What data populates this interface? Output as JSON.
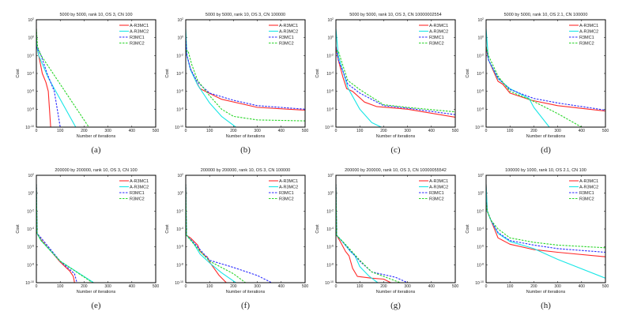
{
  "legend": {
    "entries": [
      "A-R3MC1",
      "A-R3MC2",
      "R3MC1",
      "R3MC2"
    ],
    "position": "top-right"
  },
  "colors": {
    "A-R3MC1": "#ff2a2a",
    "A-R3MC2": "#19e6e6",
    "R3MC1": "#2a2aff",
    "R3MC2": "#2ad62a"
  },
  "line_styles": {
    "A-R3MC1": "solid",
    "A-R3MC2": "solid",
    "R3MC1": "dashed",
    "R3MC2": "dashed"
  },
  "chart_data": [
    {
      "type": "line",
      "caption": "(a)",
      "title": "5000 by 5000, rank 10, OS 3, CN 100",
      "xlabel": "Number of iterations",
      "ylabel": "Cost",
      "xlim": [
        0,
        500
      ],
      "ylim": [
        1e-10,
        100
      ],
      "yscale": "log",
      "xticks": [
        0,
        100,
        200,
        300,
        400,
        500
      ],
      "yticks": [
        100,
        1,
        0.01,
        0.0001,
        1e-06,
        1e-08,
        1e-10
      ],
      "series": [
        {
          "name": "A-R3MC1",
          "x": [
            0,
            2,
            10,
            25,
            40,
            50,
            60
          ],
          "y": [
            10,
            0.1,
            0.01,
            0.0001,
            1e-05,
            1e-06,
            1e-10
          ]
        },
        {
          "name": "A-R3MC2",
          "x": [
            0,
            2,
            10,
            50,
            165
          ],
          "y": [
            10,
            0.1,
            0.01,
            3.2e-05,
            1e-10
          ]
        },
        {
          "name": "R3MC1",
          "x": [
            0,
            20,
            45,
            75,
            100
          ],
          "y": [
            0.1,
            0.01,
            0.0001,
            1e-06,
            1e-10
          ]
        },
        {
          "name": "R3MC2",
          "x": [
            0,
            5,
            20,
            220
          ],
          "y": [
            10,
            0.1,
            0.01,
            1e-10
          ]
        }
      ]
    },
    {
      "type": "line",
      "caption": "(b)",
      "title": "5000 by 5000, rank 10, OS 3, CN 100000",
      "xlabel": "Number of iterations",
      "ylabel": "Cost",
      "xlim": [
        0,
        500
      ],
      "ylim": [
        1e-10,
        100
      ],
      "yscale": "log",
      "xticks": [
        0,
        100,
        200,
        300,
        400,
        500
      ],
      "yticks": [
        100,
        1,
        0.01,
        0.0001,
        1e-06,
        1e-08,
        1e-10
      ],
      "series": [
        {
          "name": "A-R3MC1",
          "x": [
            0,
            5,
            20,
            45,
            60,
            150,
            300,
            500
          ],
          "y": [
            1,
            0.01,
            0.00032,
            1e-05,
            2e-06,
            1.3e-07,
            1.6e-08,
            7.9e-09
          ]
        },
        {
          "name": "A-R3MC2",
          "x": [
            0,
            5,
            20,
            50,
            100,
            150,
            210
          ],
          "y": [
            10,
            0.01,
            0.00025,
            5e-06,
            5e-08,
            1.6e-09,
            1e-10
          ]
        },
        {
          "name": "R3MC1",
          "x": [
            0,
            5,
            20,
            50,
            100,
            200,
            300,
            500
          ],
          "y": [
            1,
            0.01,
            0.00032,
            1e-05,
            6.3e-07,
            1e-07,
            2.5e-08,
            1e-08
          ]
        },
        {
          "name": "R3MC2",
          "x": [
            0,
            10,
            25,
            50,
            100,
            150,
            200,
            300,
            500
          ],
          "y": [
            0.032,
            0.032,
            0.001,
            1.6e-05,
            3.2e-07,
            1e-08,
            1.6e-09,
            6.3e-10,
            5e-10
          ]
        }
      ]
    },
    {
      "type": "line",
      "caption": "(c)",
      "title": "5000 by 5000, rank 10, OS 3, CN 10000002554",
      "xlabel": "Number of iterations",
      "ylabel": "Cost",
      "xlim": [
        0,
        500
      ],
      "ylim": [
        1e-10,
        100
      ],
      "yscale": "log",
      "xticks": [
        0,
        100,
        200,
        300,
        400,
        500
      ],
      "yticks": [
        100,
        1,
        0.01,
        0.0001,
        1e-06,
        1e-08,
        1e-10
      ],
      "series": [
        {
          "name": "A-R3MC1",
          "x": [
            0,
            10,
            30,
            45,
            70,
            120,
            170,
            300,
            500
          ],
          "y": [
            0.1,
            0.0032,
            3.2e-05,
            2e-06,
            1e-06,
            6.3e-08,
            2e-08,
            1e-08,
            1.3e-09
          ]
        },
        {
          "name": "A-R3MC2",
          "x": [
            0,
            10,
            30,
            50,
            100,
            150,
            190
          ],
          "y": [
            10,
            0.01,
            0.00016,
            2.5e-06,
            1e-08,
            3.2e-10,
            1e-10
          ]
        },
        {
          "name": "R3MC1",
          "x": [
            0,
            10,
            30,
            50,
            100,
            200,
            300,
            500
          ],
          "y": [
            0.1,
            0.0032,
            0.00016,
            6.3e-06,
            6.3e-07,
            2.5e-08,
            1.3e-08,
            2.5e-09
          ]
        },
        {
          "name": "R3MC2",
          "x": [
            0,
            10,
            30,
            50,
            100,
            200,
            300,
            500
          ],
          "y": [
            0.032,
            0.032,
            0.00063,
            1.6e-05,
            1.6e-06,
            3.2e-08,
            1.6e-08,
            5e-09
          ]
        }
      ]
    },
    {
      "type": "line",
      "caption": "(d)",
      "title": "5000 by 5000, rank 10, OS 2.1, CN 100000",
      "xlabel": "Number of iterations",
      "ylabel": "Cost",
      "xlim": [
        0,
        500
      ],
      "ylim": [
        1e-10,
        100
      ],
      "yscale": "log",
      "xticks": [
        0,
        100,
        200,
        300,
        400,
        500
      ],
      "yticks": [
        100,
        1,
        0.01,
        0.0001,
        1e-06,
        1e-08,
        1e-10
      ],
      "series": [
        {
          "name": "A-R3MC1",
          "x": [
            0,
            10,
            50,
            70,
            100,
            190,
            300,
            500
          ],
          "y": [
            0.1,
            0.0032,
            1.3e-05,
            6.3e-06,
            6.3e-07,
            1e-07,
            2.5e-08,
            6.3e-09
          ]
        },
        {
          "name": "A-R3MC2",
          "x": [
            0,
            10,
            50,
            100,
            180,
            200,
            265
          ],
          "y": [
            10,
            0.0032,
            2.5e-05,
            2e-06,
            1.6e-07,
            1.6e-08,
            1e-10
          ]
        },
        {
          "name": "R3MC1",
          "x": [
            0,
            10,
            50,
            100,
            200,
            300,
            500
          ],
          "y": [
            0.1,
            0.0032,
            3.2e-05,
            1.6e-06,
            1.6e-07,
            5e-08,
            7.9e-09
          ]
        },
        {
          "name": "R3MC2",
          "x": [
            0,
            10,
            50,
            100,
            190,
            300,
            400
          ],
          "y": [
            0.1,
            0.01,
            5e-05,
            1e-06,
            1e-07,
            3.2e-09,
            1e-10
          ]
        }
      ]
    },
    {
      "type": "line",
      "caption": "(e)",
      "title": "200000 by 200000, rank 10, OS 3, CN 100",
      "xlabel": "Number of iterations",
      "ylabel": "Cost",
      "xlim": [
        0,
        500
      ],
      "ylim": [
        1e-10,
        100
      ],
      "yscale": "log",
      "xticks": [
        0,
        100,
        200,
        300,
        400,
        500
      ],
      "yticks": [
        100,
        1,
        0.01,
        0.0001,
        1e-06,
        1e-08,
        1e-10
      ],
      "series": [
        {
          "name": "A-R3MC1",
          "x": [
            0,
            3,
            20,
            100,
            140,
            155,
            160
          ],
          "y": [
            10,
            3.2e-05,
            6.3e-06,
            2e-08,
            2e-09,
            5e-10,
            1e-10
          ]
        },
        {
          "name": "A-R3MC2",
          "x": [
            0,
            3,
            20,
            100,
            240
          ],
          "y": [
            10,
            3.2e-05,
            5e-06,
            2.5e-08,
            1e-10
          ]
        },
        {
          "name": "R3MC1",
          "x": [
            0,
            3,
            20,
            100,
            160,
            170
          ],
          "y": [
            10,
            3.2e-05,
            1e-05,
            2.5e-08,
            1e-09,
            1e-10
          ]
        },
        {
          "name": "R3MC2",
          "x": [
            0,
            3,
            20,
            100,
            235
          ],
          "y": [
            10,
            3.2e-05,
            5e-06,
            2.5e-08,
            1e-10
          ]
        }
      ]
    },
    {
      "type": "line",
      "caption": "(f)",
      "title": "200000 by 200000, rank 10, OS 3, CN 100000",
      "xlabel": "Number of iterations",
      "ylabel": "Cost",
      "xlim": [
        0,
        500
      ],
      "ylim": [
        1e-10,
        100
      ],
      "yscale": "log",
      "xticks": [
        0,
        100,
        200,
        300,
        400,
        500
      ],
      "yticks": [
        100,
        1,
        0.01,
        0.0001,
        1e-06,
        1e-08,
        1e-10
      ],
      "series": [
        {
          "name": "A-R3MC1",
          "x": [
            0,
            3,
            20,
            50,
            60,
            80,
            90,
            100,
            140,
            170
          ],
          "y": [
            10,
            2e-05,
            1e-05,
            1.6e-06,
            3.2e-07,
            1e-07,
            7.9e-08,
            2e-08,
            6.3e-10,
            1e-10
          ]
        },
        {
          "name": "A-R3MC2",
          "x": [
            0,
            3,
            30,
            60,
            100,
            150,
            210
          ],
          "y": [
            10,
            2e-05,
            3.2e-06,
            1.6e-07,
            1.6e-08,
            1.3e-09,
            1e-10
          ]
        },
        {
          "name": "R3MC1",
          "x": [
            0,
            3,
            50,
            100,
            200,
            300,
            360
          ],
          "y": [
            10,
            2e-05,
            1e-06,
            3.2e-08,
            5e-09,
            6.3e-10,
            1e-10
          ]
        },
        {
          "name": "R3MC2",
          "x": [
            0,
            3,
            50,
            100,
            200,
            250
          ],
          "y": [
            10,
            2e-05,
            6.3e-07,
            2.5e-08,
            1e-09,
            1e-10
          ]
        }
      ]
    },
    {
      "type": "line",
      "caption": "(g)",
      "title": "200000 by 200000, rank 10, OS 3, CN 10000055542",
      "xlabel": "Number of iterations",
      "ylabel": "Cost",
      "xlim": [
        0,
        500
      ],
      "ylim": [
        1e-10,
        100
      ],
      "yscale": "log",
      "xticks": [
        0,
        100,
        200,
        300,
        400,
        500
      ],
      "yticks": [
        100,
        1,
        0.01,
        0.0001,
        1e-06,
        1e-08,
        1e-10
      ],
      "series": [
        {
          "name": "A-R3MC1",
          "x": [
            0,
            3,
            20,
            40,
            55,
            70,
            90,
            150,
            200,
            230
          ],
          "y": [
            10,
            2e-05,
            3.2e-06,
            3.2e-07,
            1e-07,
            4e-09,
            5e-10,
            3.2e-10,
            2.5e-10,
            1e-10
          ]
        },
        {
          "name": "A-R3MC2",
          "x": [
            0,
            3,
            30,
            60,
            80,
            100,
            140,
            175
          ],
          "y": [
            10,
            2e-05,
            3.2e-06,
            3.2e-07,
            1e-07,
            6.3e-09,
            5e-10,
            1e-10
          ]
        },
        {
          "name": "R3MC1",
          "x": [
            0,
            3,
            50,
            100,
            150,
            250,
            300
          ],
          "y": [
            10,
            2e-05,
            7.9e-07,
            2.5e-08,
            1.6e-09,
            4e-10,
            1e-10
          ]
        },
        {
          "name": "R3MC2",
          "x": [
            0,
            3,
            50,
            100,
            150,
            270
          ],
          "y": [
            10,
            2e-05,
            1e-06,
            3.2e-08,
            1.6e-09,
            1e-10
          ]
        }
      ]
    },
    {
      "type": "line",
      "caption": "(h)",
      "title": "100000 by 1000, rank 10, OS 2.1, CN 100",
      "xlabel": "Number of iterations",
      "ylabel": "Cost",
      "xlim": [
        0,
        500
      ],
      "ylim": [
        1e-10,
        100
      ],
      "yscale": "log",
      "xticks": [
        0,
        100,
        200,
        300,
        400,
        500
      ],
      "yticks": [
        100,
        1,
        0.01,
        0.0001,
        1e-06,
        1e-08,
        1e-10
      ],
      "series": [
        {
          "name": "A-R3MC1",
          "x": [
            0,
            5,
            20,
            50,
            100,
            200,
            300,
            500
          ],
          "y": [
            10,
            0.01,
            0.001,
            1e-05,
            2e-06,
            5e-07,
            2.5e-07,
            7.9e-08
          ]
        },
        {
          "name": "A-R3MC2",
          "x": [
            0,
            5,
            20,
            50,
            100,
            200,
            300,
            500
          ],
          "y": [
            10,
            0.01,
            0.001,
            3.2e-05,
            4e-06,
            6.3e-07,
            4e-08,
            3.2e-10
          ]
        },
        {
          "name": "R3MC1",
          "x": [
            0,
            5,
            20,
            50,
            100,
            200,
            300,
            500
          ],
          "y": [
            0.1,
            0.01,
            0.001,
            4e-05,
            5e-06,
            1.6e-06,
            6.3e-07,
            2.5e-07
          ]
        },
        {
          "name": "R3MC2",
          "x": [
            0,
            5,
            20,
            50,
            100,
            200,
            300,
            500
          ],
          "y": [
            0.1,
            0.01,
            0.001,
            0.0001,
            1e-05,
            3.2e-06,
            1.6e-06,
            7.9e-07
          ]
        }
      ]
    }
  ]
}
